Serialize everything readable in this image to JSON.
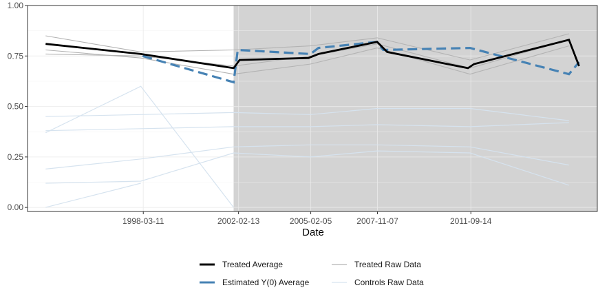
{
  "chart_data": {
    "type": "line",
    "title": "",
    "xlabel": "Date",
    "ylabel": "",
    "x_tick_labels": [
      "1998-03-11",
      "2002-02-13",
      "2005-02-05",
      "2007-11-07",
      "2011-09-14"
    ],
    "x_tick_dates": [
      "1998-03-11",
      "2002-02-13",
      "2005-02-05",
      "2007-11-07",
      "2011-09-14"
    ],
    "xlim": [
      "1993-06-01",
      "2016-12-01"
    ],
    "y_tick_labels": [
      "0.00",
      "0.25",
      "0.50",
      "0.75",
      "1.00"
    ],
    "y_ticks": [
      0,
      0.25,
      0.5,
      0.75,
      1.0
    ],
    "ylim": [
      -0.02,
      1.0
    ],
    "grid": true,
    "treatment_period": {
      "start": "2001-12-01",
      "end": "2016-12-01",
      "color": "#d3d3d3"
    },
    "legend": {
      "position": "bottom",
      "items": [
        {
          "label": "Treated Average",
          "color": "#000000",
          "style": "solid-thick"
        },
        {
          "label": "Estimated Y(0) Average",
          "color": "#4682b4",
          "style": "dashed-thick"
        },
        {
          "label": "Treated Raw Data",
          "color": "#b3b3b3",
          "style": "solid-thin"
        },
        {
          "label": "Controls Raw Data",
          "color": "#d6e3ef",
          "style": "solid-thin"
        }
      ]
    },
    "series": [
      {
        "name": "Treated Average",
        "color": "#000000",
        "points": [
          [
            "1994-03-01",
            0.81
          ],
          [
            "1998-02-01",
            0.76
          ],
          [
            "2001-12-01",
            0.69
          ],
          [
            "2002-03-01",
            0.73
          ],
          [
            "2005-01-01",
            0.74
          ],
          [
            "2005-06-01",
            0.76
          ],
          [
            "2007-11-01",
            0.82
          ],
          [
            "2008-04-01",
            0.77
          ],
          [
            "2011-08-01",
            0.69
          ],
          [
            "2011-11-01",
            0.71
          ],
          [
            "2015-10-01",
            0.83
          ],
          [
            "2016-03-01",
            0.7
          ]
        ]
      },
      {
        "name": "Estimated Y(0) Average",
        "color": "#4682b4",
        "points": [
          [
            "1998-03-01",
            0.75
          ],
          [
            "2001-12-01",
            0.62
          ],
          [
            "2002-02-01",
            0.78
          ],
          [
            "2005-02-01",
            0.76
          ],
          [
            "2005-06-01",
            0.79
          ],
          [
            "2007-11-01",
            0.82
          ],
          [
            "2008-02-01",
            0.78
          ],
          [
            "2011-09-01",
            0.79
          ],
          [
            "2015-10-01",
            0.66
          ],
          [
            "2016-03-01",
            0.72
          ]
        ]
      },
      {
        "name": "Treated Raw Data",
        "color": "#b3b3b3",
        "lines": [
          [
            [
              "1994-03-01",
              0.85
            ],
            [
              "1998-02-01",
              0.77
            ],
            [
              "2001-12-01",
              0.78
            ],
            [
              "2005-02-01",
              0.8
            ],
            [
              "2007-11-01",
              0.84
            ],
            [
              "2011-09-01",
              0.73
            ],
            [
              "2015-10-01",
              0.86
            ]
          ],
          [
            [
              "1994-03-01",
              0.78
            ],
            [
              "1998-02-01",
              0.74
            ],
            [
              "2001-12-01",
              0.66
            ],
            [
              "2005-02-01",
              0.71
            ],
            [
              "2007-11-01",
              0.79
            ],
            [
              "2011-09-01",
              0.66
            ],
            [
              "2015-10-01",
              0.8
            ]
          ],
          [
            [
              "1994-03-01",
              0.76
            ],
            [
              "1998-02-01",
              0.75
            ],
            [
              "2001-12-01",
              0.7
            ],
            [
              "2005-02-01",
              0.75
            ],
            [
              "2007-11-01",
              0.81
            ],
            [
              "2011-09-01",
              0.69
            ],
            [
              "2015-10-01",
              0.83
            ]
          ]
        ]
      },
      {
        "name": "Controls Raw Data",
        "color": "#d6e3ef",
        "lines": [
          [
            [
              "1994-03-01",
              0.45
            ],
            [
              "1998-02-01",
              0.46
            ],
            [
              "2001-12-01",
              0.47
            ],
            [
              "2005-02-01",
              0.46
            ],
            [
              "2007-11-01",
              0.49
            ],
            [
              "2011-09-01",
              0.49
            ],
            [
              "2015-10-01",
              0.43
            ]
          ],
          [
            [
              "1994-03-01",
              0.37
            ],
            [
              "1998-02-01",
              0.6
            ],
            [
              "2001-12-01",
              0.0
            ]
          ],
          [
            [
              "1994-03-01",
              0.38
            ],
            [
              "1998-02-01",
              0.39
            ],
            [
              "2001-12-01",
              0.4
            ],
            [
              "2005-02-01",
              0.4
            ],
            [
              "2007-11-01",
              0.41
            ],
            [
              "2011-09-01",
              0.4
            ],
            [
              "2015-10-01",
              0.42
            ]
          ],
          [
            [
              "1994-03-01",
              0.19
            ],
            [
              "1998-02-01",
              0.24
            ],
            [
              "2001-12-01",
              0.3
            ],
            [
              "2005-02-01",
              0.31
            ],
            [
              "2007-11-01",
              0.31
            ],
            [
              "2011-09-01",
              0.3
            ],
            [
              "2015-10-01",
              0.21
            ]
          ],
          [
            [
              "1994-03-01",
              0.12
            ],
            [
              "1998-02-01",
              0.13
            ],
            [
              "2001-12-01",
              0.27
            ],
            [
              "2005-02-01",
              0.25
            ],
            [
              "2007-11-01",
              0.28
            ],
            [
              "2011-09-01",
              0.27
            ],
            [
              "2015-10-01",
              0.11
            ]
          ],
          [
            [
              "1994-03-01",
              0.0
            ],
            [
              "1998-02-01",
              0.12
            ]
          ]
        ]
      }
    ]
  }
}
